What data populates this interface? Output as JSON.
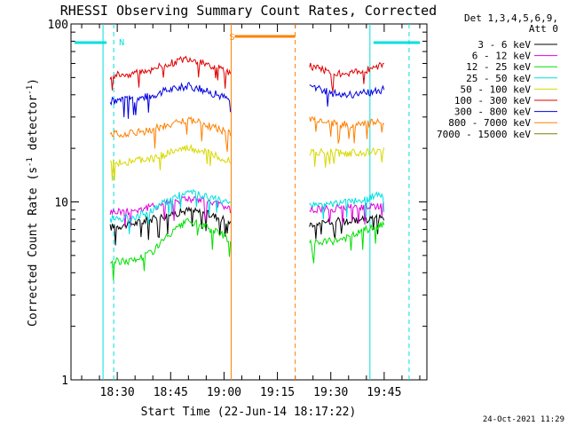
{
  "chart_data": {
    "type": "line",
    "title": "RHESSI Observing Summary Count Rates, Corrected",
    "xlabel": "Start Time (22-Jun-14 18:17:22)",
    "ylabel": "Corrected Count Rate (s",
    "ylabel_sup1": "-1",
    "ylabel_mid": " detector",
    "ylabel_sup2": "-1",
    "ylabel_end": ")",
    "y_scale": "log",
    "ylim": [
      1,
      100
    ],
    "y_ticks": [
      {
        "value": 1,
        "label": "1"
      },
      {
        "value": 10,
        "label": "10"
      },
      {
        "value": 100,
        "label": "100"
      }
    ],
    "xlim": [
      "18:17",
      "19:57"
    ],
    "x_ticks": [
      {
        "value": "18:30",
        "label": "18:30"
      },
      {
        "value": "18:45",
        "label": "18:45"
      },
      {
        "value": "19:00",
        "label": "19:00"
      },
      {
        "value": "19:15",
        "label": "19:15"
      },
      {
        "value": "19:30",
        "label": "19:30"
      },
      {
        "value": "19:45",
        "label": "19:45"
      }
    ],
    "legend_header": [
      "Det 1,3,4,5,6,9,",
      "Att 0"
    ],
    "legend_position": "top-right",
    "series": [
      {
        "name": "3 - 6 keV",
        "color": "#000000",
        "segments": [
          {
            "x": [
              "18:28",
              "18:35",
              "18:40",
              "18:45",
              "18:50",
              "18:55",
              "19:00",
              "19:02"
            ],
            "y": [
              7.2,
              7.6,
              8.0,
              8.5,
              9.0,
              8.6,
              8.0,
              7.6
            ]
          },
          {
            "x": [
              "19:24",
              "19:30",
              "19:35",
              "19:40",
              "19:45"
            ],
            "y": [
              7.5,
              7.8,
              7.8,
              8.0,
              8.2
            ]
          }
        ]
      },
      {
        "name": "6 - 12 keV",
        "color": "#e000e0",
        "segments": [
          {
            "x": [
              "18:28",
              "18:35",
              "18:40",
              "18:45",
              "18:50",
              "18:55",
              "19:00",
              "19:02"
            ],
            "y": [
              8.8,
              9.0,
              9.4,
              10.0,
              10.5,
              10.0,
              9.5,
              9.0
            ]
          },
          {
            "x": [
              "19:24",
              "19:30",
              "19:35",
              "19:40",
              "19:45"
            ],
            "y": [
              9.0,
              9.2,
              9.3,
              9.5,
              9.6
            ]
          }
        ]
      },
      {
        "name": "12 - 25 keV",
        "color": "#00e000",
        "segments": [
          {
            "x": [
              "18:28",
              "18:35",
              "18:40",
              "18:45",
              "18:50",
              "18:55",
              "19:00",
              "19:02"
            ],
            "y": [
              4.6,
              4.7,
              5.3,
              6.6,
              7.8,
              7.2,
              6.5,
              6.0
            ]
          },
          {
            "x": [
              "19:24",
              "19:30",
              "19:35",
              "19:40",
              "19:45"
            ],
            "y": [
              5.8,
              6.0,
              6.3,
              7.0,
              7.4
            ]
          }
        ]
      },
      {
        "name": "25 - 50 keV",
        "color": "#00e0e0",
        "segments": [
          {
            "x": [
              "18:28",
              "18:35",
              "18:40",
              "18:45",
              "18:50",
              "18:55",
              "19:00",
              "19:02"
            ],
            "y": [
              8.0,
              8.3,
              9.0,
              10.5,
              11.5,
              10.8,
              10.0,
              9.6
            ]
          },
          {
            "x": [
              "19:24",
              "19:30",
              "19:35",
              "19:40",
              "19:45"
            ],
            "y": [
              9.5,
              9.8,
              10.0,
              10.5,
              11.0
            ]
          }
        ]
      },
      {
        "name": "50 - 100 keV",
        "color": "#d8d800",
        "segments": [
          {
            "x": [
              "18:28",
              "18:35",
              "18:40",
              "18:45",
              "18:50",
              "18:55",
              "19:00",
              "19:02"
            ],
            "y": [
              16.5,
              17.0,
              17.5,
              19.0,
              20.0,
              19.0,
              17.5,
              17.0
            ]
          },
          {
            "x": [
              "19:24",
              "19:30",
              "19:35",
              "19:40",
              "19:45"
            ],
            "y": [
              19.0,
              19.0,
              18.8,
              19.0,
              19.3
            ]
          }
        ]
      },
      {
        "name": "100 - 300 keV",
        "color": "#e00000",
        "segments": [
          {
            "x": [
              "18:28",
              "18:35",
              "18:40",
              "18:45",
              "18:50",
              "18:55",
              "19:00",
              "19:02"
            ],
            "y": [
              51,
              53,
              56,
              60,
              64,
              60,
              55,
              52
            ]
          },
          {
            "x": [
              "19:24",
              "19:30",
              "19:35",
              "19:40",
              "19:45"
            ],
            "y": [
              58,
              54,
              52,
              55,
              59
            ]
          }
        ]
      },
      {
        "name": "300 - 800 keV",
        "color": "#0000e0",
        "segments": [
          {
            "x": [
              "18:28",
              "18:35",
              "18:40",
              "18:45",
              "18:50",
              "18:55",
              "19:00",
              "19:02"
            ],
            "y": [
              37,
              38,
              40,
              43,
              45,
              42,
              39,
              37
            ]
          },
          {
            "x": [
              "19:24",
              "19:30",
              "19:35",
              "19:40",
              "19:45"
            ],
            "y": [
              45,
              41,
              40,
              41,
              43
            ]
          }
        ]
      },
      {
        "name": "800 - 7000 keV",
        "color": "#ff8000",
        "segments": [
          {
            "x": [
              "18:28",
              "18:35",
              "18:40",
              "18:45",
              "18:50",
              "18:55",
              "19:00",
              "19:02"
            ],
            "y": [
              24,
              24.5,
              25.5,
              27.5,
              29,
              27,
              25,
              24
            ]
          },
          {
            "x": [
              "19:24",
              "19:30",
              "19:35",
              "19:40",
              "19:45"
            ],
            "y": [
              29,
              28,
              27,
              27.5,
              28.5
            ]
          }
        ]
      },
      {
        "name": "7000 - 15000 keV",
        "color": "#808000",
        "segments": []
      }
    ],
    "annotations": [
      {
        "type": "vline",
        "x": "18:26",
        "color": "#00e0e0",
        "style": "solid"
      },
      {
        "type": "vline",
        "x": "18:29",
        "color": "#00e0e0",
        "style": "dashed"
      },
      {
        "type": "vline",
        "x": "19:41",
        "color": "#00e0e0",
        "style": "solid"
      },
      {
        "type": "vline",
        "x": "19:52",
        "color": "#00e0e0",
        "style": "dashed"
      },
      {
        "type": "vline",
        "x": "19:02",
        "color": "#ff8000",
        "style": "solid"
      },
      {
        "type": "vline",
        "x": "19:20",
        "color": "#ff8000",
        "style": "dashed"
      },
      {
        "type": "hbar",
        "x1": "18:18",
        "x2": "18:27",
        "label": "",
        "color": "#00e0e0"
      },
      {
        "type": "label",
        "x": "18:30",
        "text": "N",
        "color": "#00e0e0"
      },
      {
        "type": "label",
        "x": "19:01",
        "text": "S",
        "color": "#ff8000"
      },
      {
        "type": "hbar",
        "x1": "19:03",
        "x2": "19:20",
        "label": "",
        "color": "#ff8000"
      },
      {
        "type": "hbar",
        "x1": "19:42",
        "x2": "19:55",
        "label": "",
        "color": "#00e0e0"
      }
    ],
    "grid": false
  },
  "footer": {
    "date_stamp": "24-Oct-2021 11:29"
  }
}
